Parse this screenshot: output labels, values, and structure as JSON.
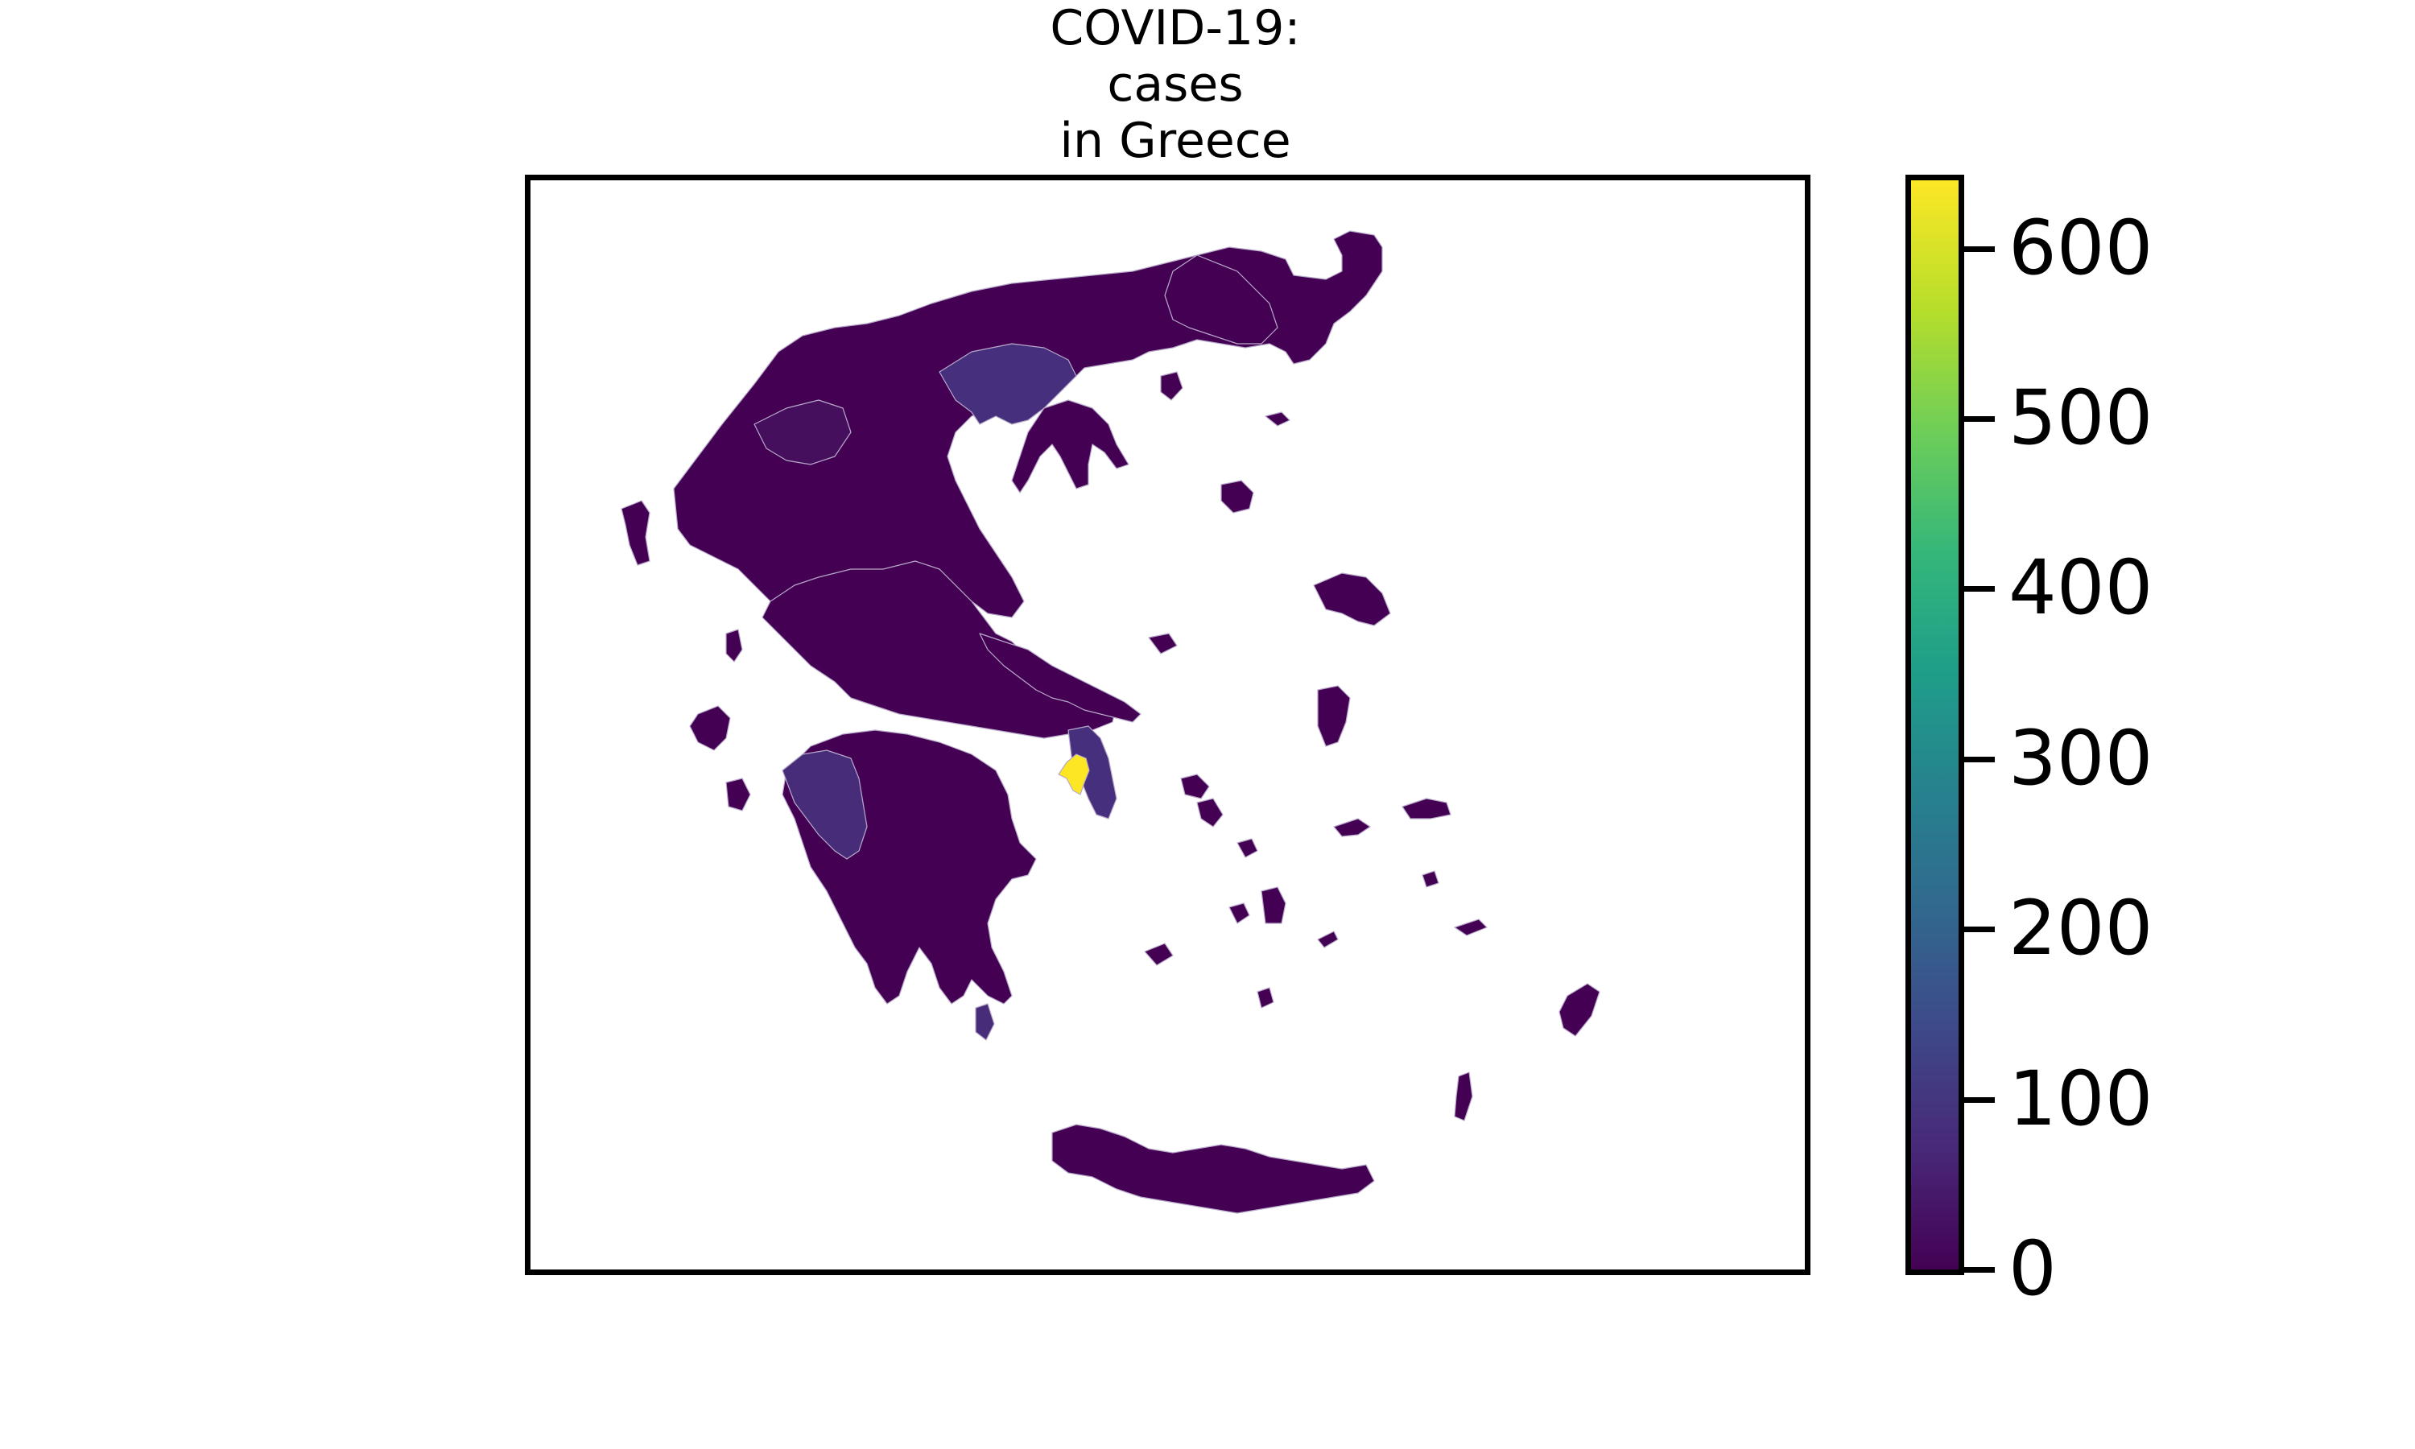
{
  "map": {
    "title_lines": [
      "COVID-19:",
      "cases",
      "in Greece"
    ],
    "country": "Greece",
    "colormap": "viridis",
    "color_scale": {
      "min": 0,
      "max": 640
    },
    "region_fill_colors": {
      "base": "#440154",
      "moderate": "#472c7a",
      "elevated": "#46307e",
      "highest": "#fde725"
    },
    "border_color": "#b8a9c9"
  },
  "legend": {
    "type": "colorbar",
    "ticks": [
      "0",
      "100",
      "200",
      "300",
      "400",
      "500",
      "600"
    ]
  }
}
